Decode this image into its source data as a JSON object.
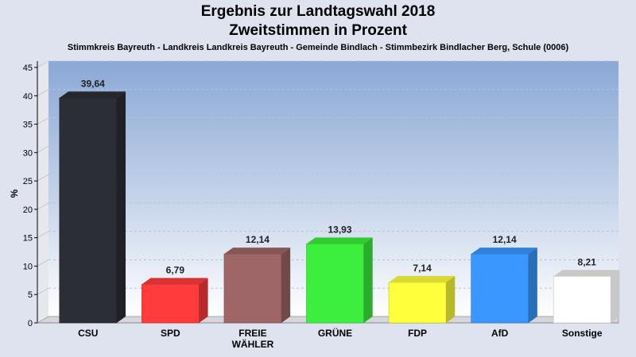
{
  "header": {
    "title_line1": "Ergebnis zur Landtagswahl 2018",
    "title_line2": "Zweitstimmen in Prozent",
    "subtitle": "Stimmkreis Bayreuth - Landkreis Landkreis Bayreuth - Gemeinde Bindlach - Stimmbezirk Bindlacher Berg, Schule (0006)"
  },
  "chart_data": {
    "type": "bar",
    "title": "Ergebnis zur Landtagswahl 2018",
    "subtitle": "Zweitstimmen in Prozent",
    "xlabel": "",
    "ylabel": "%",
    "ylim": [
      0,
      45
    ],
    "yticks": [
      0,
      5,
      10,
      15,
      20,
      25,
      30,
      35,
      40,
      45
    ],
    "grid": true,
    "categories": [
      [
        "CSU"
      ],
      [
        "SPD"
      ],
      [
        "FREIE",
        "WÄHLER"
      ],
      [
        "GRÜNE"
      ],
      [
        "FDP"
      ],
      [
        "AfD"
      ],
      [
        "Sonstige"
      ]
    ],
    "values": [
      39.64,
      6.79,
      12.14,
      13.93,
      7.14,
      12.14,
      8.21
    ],
    "value_labels": [
      "39,64",
      "6,79",
      "12,14",
      "13,93",
      "7,14",
      "12,14",
      "8,21"
    ],
    "colors": [
      "#2b2e35",
      "#ff3b3b",
      "#9e6666",
      "#3cef3c",
      "#ffff3c",
      "#3a97ff",
      "#ffffff"
    ]
  }
}
